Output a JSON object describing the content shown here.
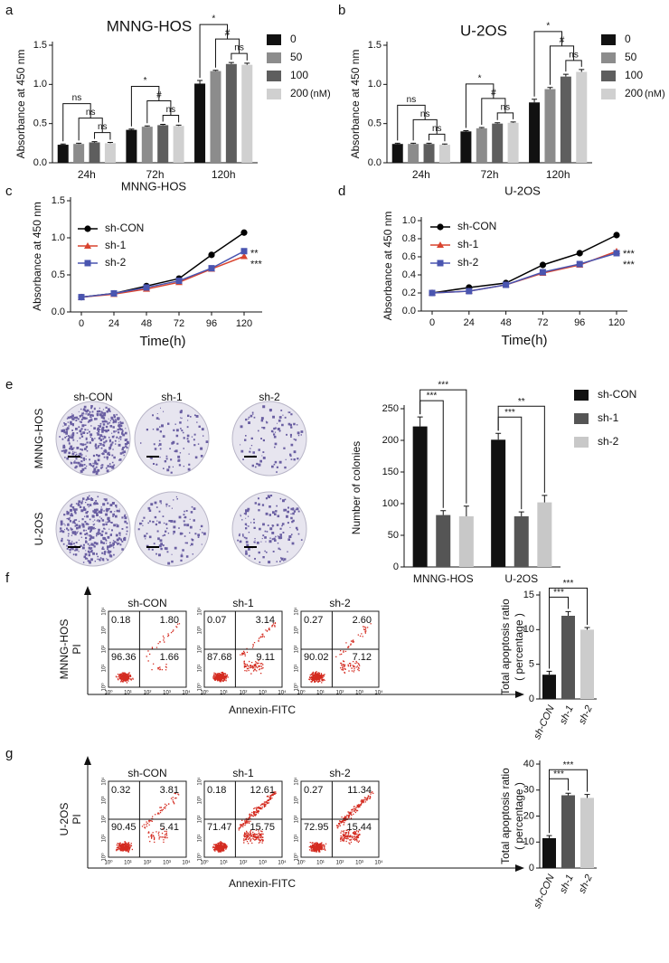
{
  "panel_labels": [
    "a",
    "b",
    "c",
    "d",
    "e",
    "f",
    "g"
  ],
  "chart_data": [
    {
      "type": "bar",
      "title": "MNNG-HOS",
      "ylabel": "Absorbance at 450 nm",
      "categories": [
        "24h",
        "72h",
        "120h"
      ],
      "series": [
        {
          "name": "0",
          "color": "#111111",
          "values": [
            0.23,
            0.42,
            1.01
          ],
          "errors": [
            0.01,
            0.01,
            0.04
          ]
        },
        {
          "name": "50",
          "color": "#8c8c8c",
          "values": [
            0.24,
            0.46,
            1.17
          ],
          "errors": [
            0.01,
            0.01,
            0.01
          ]
        },
        {
          "name": "100",
          "color": "#5e5e5e",
          "values": [
            0.26,
            0.48,
            1.26
          ],
          "errors": [
            0.01,
            0.01,
            0.02
          ]
        },
        {
          "name": "200",
          "color": "#d0d0d0",
          "values": [
            0.25,
            0.47,
            1.25
          ],
          "errors": [
            0.01,
            0.01,
            0.02
          ]
        }
      ],
      "legend_unit": "(nM)",
      "legend": "right",
      "annotations": [
        [
          "ns",
          "ns",
          "ns"
        ],
        [
          "*",
          "#",
          "ns"
        ],
        [
          "*",
          "#",
          "ns"
        ]
      ],
      "ylim": [
        0,
        1.5
      ],
      "yticks": [
        {
          "value": 0,
          "label": "0.0"
        },
        0.5,
        {
          "value": 1,
          "label": "1.0"
        },
        1.5
      ]
    },
    {
      "type": "bar",
      "title": "U-2OS",
      "ylabel": "Absorbance at 450 nm",
      "categories": [
        "24h",
        "72h",
        "120h"
      ],
      "series": [
        {
          "name": "0",
          "color": "#111111",
          "values": [
            0.24,
            0.4,
            0.77
          ],
          "errors": [
            0.01,
            0.01,
            0.04
          ]
        },
        {
          "name": "50",
          "color": "#8c8c8c",
          "values": [
            0.24,
            0.44,
            0.94
          ],
          "errors": [
            0.01,
            0.01,
            0.02
          ]
        },
        {
          "name": "100",
          "color": "#5e5e5e",
          "values": [
            0.24,
            0.5,
            1.1
          ],
          "errors": [
            0.01,
            0.01,
            0.03
          ]
        },
        {
          "name": "200",
          "color": "#d0d0d0",
          "values": [
            0.23,
            0.51,
            1.16
          ],
          "errors": [
            0.01,
            0.01,
            0.03
          ]
        }
      ],
      "legend_unit": "(nM)",
      "legend": "right",
      "annotations": [
        [
          "ns",
          "ns",
          "ns"
        ],
        [
          "*",
          "#",
          "ns"
        ],
        [
          "*",
          "#",
          "ns"
        ]
      ],
      "ylim": [
        0,
        1.5
      ],
      "yticks": [
        {
          "value": 0,
          "label": "0.0"
        },
        0.5,
        {
          "value": 1,
          "label": "1.0"
        },
        1.5
      ]
    },
    {
      "type": "line",
      "title": "MNNG-HOS",
      "xlabel": "Time(h)",
      "ylabel": "Absorbance at 450 nm",
      "x": [
        0,
        24,
        48,
        72,
        96,
        120
      ],
      "series": [
        {
          "name": "sh-CON",
          "color": "#000000",
          "marker": "circle",
          "values": [
            0.2,
            0.25,
            0.35,
            0.45,
            0.77,
            1.07
          ]
        },
        {
          "name": "sh-1",
          "color": "#d9442f",
          "marker": "triangle",
          "values": [
            0.2,
            0.24,
            0.31,
            0.4,
            0.58,
            0.75
          ],
          "annotation": "***"
        },
        {
          "name": "sh-2",
          "color": "#4a55b0",
          "marker": "square",
          "values": [
            0.2,
            0.25,
            0.33,
            0.42,
            0.59,
            0.82
          ],
          "annotation": "**"
        }
      ],
      "legend": "upper left",
      "xlim": [
        0,
        120
      ],
      "xticks": [
        0,
        24,
        48,
        72,
        96,
        120
      ],
      "ylim": [
        0,
        1.5
      ],
      "yticks": [
        {
          "value": 0,
          "label": "0.0"
        },
        0.5,
        {
          "value": 1,
          "label": "1.0"
        },
        1.5
      ]
    },
    {
      "type": "line",
      "title": "U-2OS",
      "xlabel": "Time(h)",
      "ylabel": "Absorbance at 450 nm",
      "x": [
        0,
        24,
        48,
        72,
        96,
        120
      ],
      "series": [
        {
          "name": "sh-CON",
          "color": "#000000",
          "marker": "circle",
          "values": [
            0.2,
            0.26,
            0.31,
            0.51,
            0.64,
            0.84
          ]
        },
        {
          "name": "sh-1",
          "color": "#d9442f",
          "marker": "triangle",
          "values": [
            0.2,
            0.22,
            0.29,
            0.42,
            0.51,
            0.66
          ],
          "annotation": "***"
        },
        {
          "name": "sh-2",
          "color": "#4a55b0",
          "marker": "square",
          "values": [
            0.2,
            0.22,
            0.29,
            0.43,
            0.52,
            0.64
          ],
          "annotation": "***"
        }
      ],
      "legend": "upper left",
      "xlim": [
        0,
        120
      ],
      "xticks": [
        0,
        24,
        48,
        72,
        96,
        120
      ],
      "ylim": [
        0,
        1
      ],
      "yticks": [
        {
          "value": 0,
          "label": "0.0"
        },
        0.2,
        0.4,
        0.6,
        0.8,
        {
          "value": 1,
          "label": "1.0"
        }
      ]
    },
    {
      "type": "bar",
      "ylabel": "Number of colonies",
      "categories": [
        "MNNG-HOS",
        "U-2OS"
      ],
      "series": [
        {
          "name": "sh-CON",
          "color": "#111111",
          "values": [
            222,
            201
          ],
          "errors": [
            15,
            10
          ]
        },
        {
          "name": "sh-1",
          "color": "#555555",
          "values": [
            82,
            80
          ],
          "errors": [
            7,
            7
          ],
          "annotations": [
            "***",
            "***"
          ]
        },
        {
          "name": "sh-2",
          "color": "#c8c8c8",
          "values": [
            80,
            102
          ],
          "errors": [
            16,
            11
          ],
          "annotations": [
            "***",
            "**"
          ]
        }
      ],
      "legend": "right",
      "ylim": [
        0,
        250
      ],
      "yticks": [
        0,
        50,
        100,
        150,
        200,
        250
      ]
    },
    {
      "type": "bar",
      "ylabel": [
        "Total apoptosis ratio",
        "( percentage )"
      ],
      "categories": [
        "sh-CON",
        "sh-1",
        "sh-2"
      ],
      "values": [
        3.5,
        12,
        10
      ],
      "errors": [
        0.5,
        0.6,
        0.3
      ],
      "colors": [
        "#111111",
        "#555555",
        "#cccccc"
      ],
      "annotations": [
        null,
        "***",
        "***"
      ],
      "ylim": [
        0,
        15
      ],
      "yticks": [
        0,
        5,
        10,
        15
      ]
    },
    {
      "type": "bar",
      "ylabel": [
        "Total apoptosis ratio",
        "( percentage )"
      ],
      "categories": [
        "sh-CON",
        "sh-1",
        "sh-2"
      ],
      "values": [
        11.5,
        28,
        27
      ],
      "errors": [
        1,
        0.8,
        1.3
      ],
      "colors": [
        "#111111",
        "#555555",
        "#cccccc"
      ],
      "annotations": [
        null,
        "***",
        "***"
      ],
      "ylim": [
        0,
        40
      ],
      "yticks": [
        0,
        10,
        20,
        30,
        40
      ]
    }
  ],
  "colony": {
    "columns": [
      "sh-CON",
      "sh-1",
      "sh-2"
    ],
    "rows": [
      "MNNG-HOS",
      "U-2OS"
    ]
  },
  "flow_axis_ticks": [
    "10⁰",
    "10¹",
    "10²",
    "10³",
    "10⁴"
  ],
  "flow": [
    {
      "row_label": "MNNG-HOS",
      "axis_label": "PI",
      "x_label": "Annexin-FITC",
      "plots": [
        {
          "title": "sh-CON",
          "quadrants": [
            "0.18",
            "1.80",
            "96.36",
            "1.66"
          ]
        },
        {
          "title": "sh-1",
          "quadrants": [
            "0.07",
            "3.14",
            "87.68",
            "9.11"
          ]
        },
        {
          "title": "sh-2",
          "quadrants": [
            "0.27",
            "2.60",
            "90.02",
            "7.12"
          ]
        }
      ]
    },
    {
      "row_label": "U-2OS",
      "axis_label": "PI",
      "x_label": "Annexin-FITC",
      "plots": [
        {
          "title": "sh-CON",
          "quadrants": [
            "0.32",
            "3.81",
            "90.45",
            "5.41"
          ]
        },
        {
          "title": "sh-1",
          "quadrants": [
            "0.18",
            "12.61",
            "71.47",
            "15.75"
          ]
        },
        {
          "title": "sh-2",
          "quadrants": [
            "0.27",
            "11.34",
            "72.95",
            "15.44"
          ]
        }
      ]
    }
  ]
}
